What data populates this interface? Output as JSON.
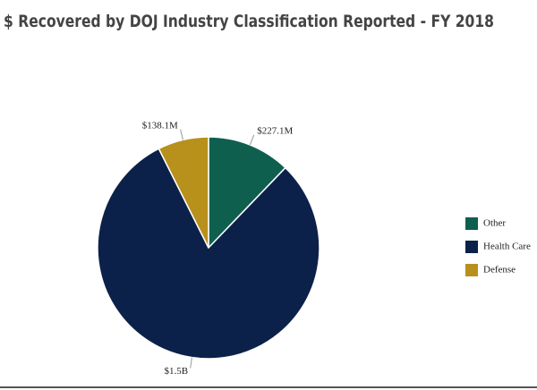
{
  "chart_data": {
    "type": "pie",
    "title": "$ Recovered by DOJ Industry Classification Reported - FY 2018",
    "categories": [
      "Other",
      "Health Care",
      "Defense"
    ],
    "values": [
      227100000,
      1500000000,
      138100000
    ],
    "value_labels": [
      "$227.1M",
      "$1.5B",
      "$138.1M"
    ],
    "colors": [
      "#0f5f4f",
      "#0c2149",
      "#b8901c"
    ],
    "legend": "right"
  }
}
